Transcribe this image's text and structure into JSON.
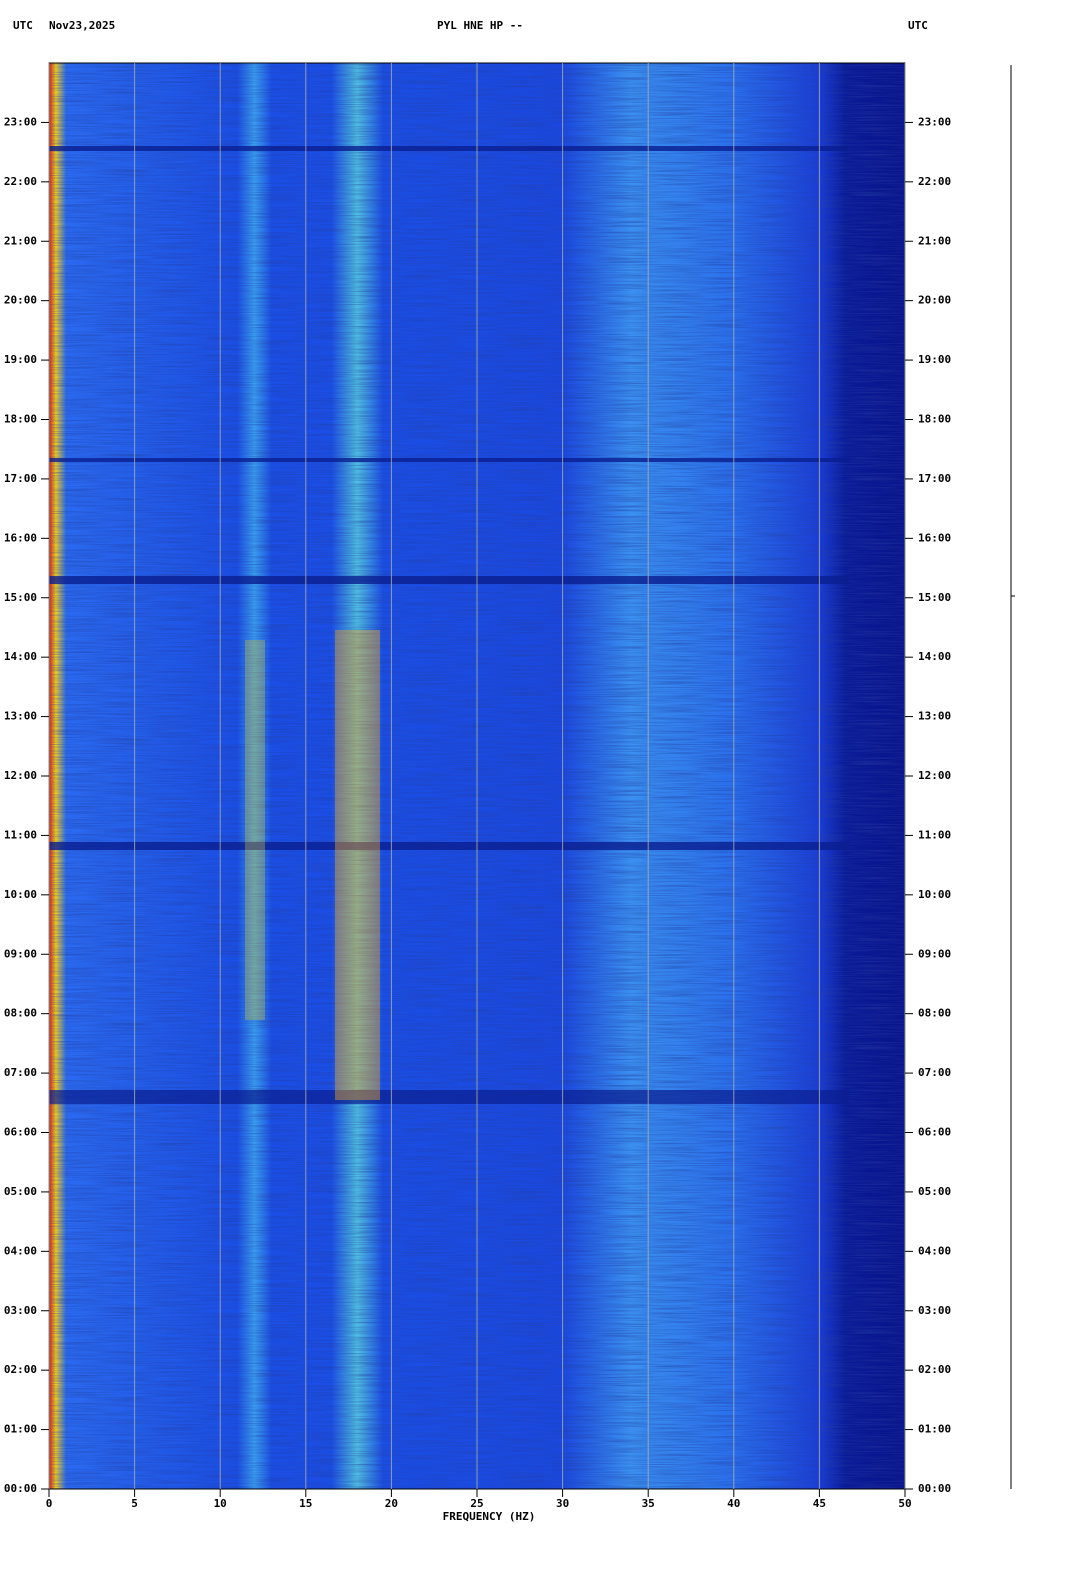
{
  "chart_data": {
    "type": "spectrogram",
    "title": "PYL HNE HP --",
    "left_label": "UTC",
    "date": "Nov23,2025",
    "right_label": "UTC",
    "x_label": "FREQUENCY (HZ)",
    "xlim": [
      0,
      50
    ],
    "xticks": [
      0,
      5,
      10,
      15,
      20,
      25,
      30,
      35,
      40,
      45,
      50
    ],
    "ylim": [
      0,
      24
    ],
    "yticks": [
      {
        "value": 0,
        "label": "00:00"
      },
      {
        "value": 1,
        "label": "01:00"
      },
      {
        "value": 2,
        "label": "02:00"
      },
      {
        "value": 3,
        "label": "03:00"
      },
      {
        "value": 4,
        "label": "04:00"
      },
      {
        "value": 5,
        "label": "05:00"
      },
      {
        "value": 6,
        "label": "06:00"
      },
      {
        "value": 7,
        "label": "07:00"
      },
      {
        "value": 8,
        "label": "08:00"
      },
      {
        "value": 9,
        "label": "09:00"
      },
      {
        "value": 10,
        "label": "10:00"
      },
      {
        "value": 11,
        "label": "11:00"
      },
      {
        "value": 12,
        "label": "12:00"
      },
      {
        "value": 13,
        "label": "13:00"
      },
      {
        "value": 14,
        "label": "14:00"
      },
      {
        "value": 15,
        "label": "15:00"
      },
      {
        "value": 16,
        "label": "16:00"
      },
      {
        "value": 17,
        "label": "17:00"
      },
      {
        "value": 18,
        "label": "18:00"
      },
      {
        "value": 19,
        "label": "19:00"
      },
      {
        "value": 20,
        "label": "20:00"
      },
      {
        "value": 21,
        "label": "21:00"
      },
      {
        "value": 22,
        "label": "22:00"
      },
      {
        "value": 23,
        "label": "23:00"
      }
    ],
    "grid": true
  }
}
